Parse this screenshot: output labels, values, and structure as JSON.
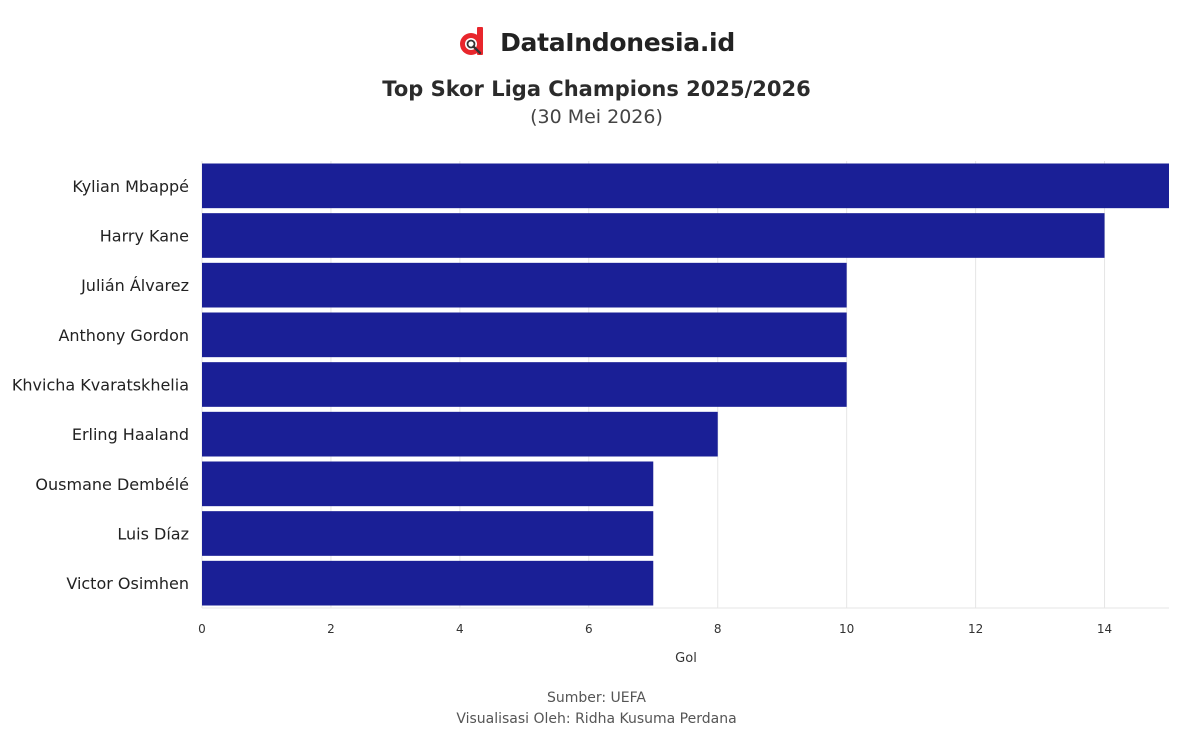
{
  "brand": {
    "name": "DataIndonesia.id",
    "logo_icon": "dataindonesia-logo-icon",
    "accent": "#e8262c"
  },
  "chart_data": {
    "type": "bar",
    "orientation": "horizontal",
    "title": "Top Skor Liga Champions 2025/2026",
    "subtitle": "(30 Mei 2026)",
    "categories": [
      "Kylian Mbappé",
      "Harry Kane",
      "Julián Álvarez",
      "Anthony Gordon",
      "Khvicha Kvaratskhelia",
      "Erling Haaland",
      "Ousmane Dembélé",
      "Luis Díaz",
      "Victor Osimhen"
    ],
    "values": [
      15,
      14,
      10,
      10,
      10,
      8,
      7,
      7,
      7
    ],
    "xlabel": "Gol",
    "ylabel": "",
    "xlim": [
      0,
      15
    ],
    "xticks": [
      0,
      2,
      4,
      6,
      8,
      10,
      12,
      14
    ],
    "grid": true,
    "bar_color": "#1a1f96"
  },
  "footer": {
    "source": "Sumber: UEFA",
    "credit": "Visualisasi Oleh: Ridha Kusuma Perdana"
  }
}
